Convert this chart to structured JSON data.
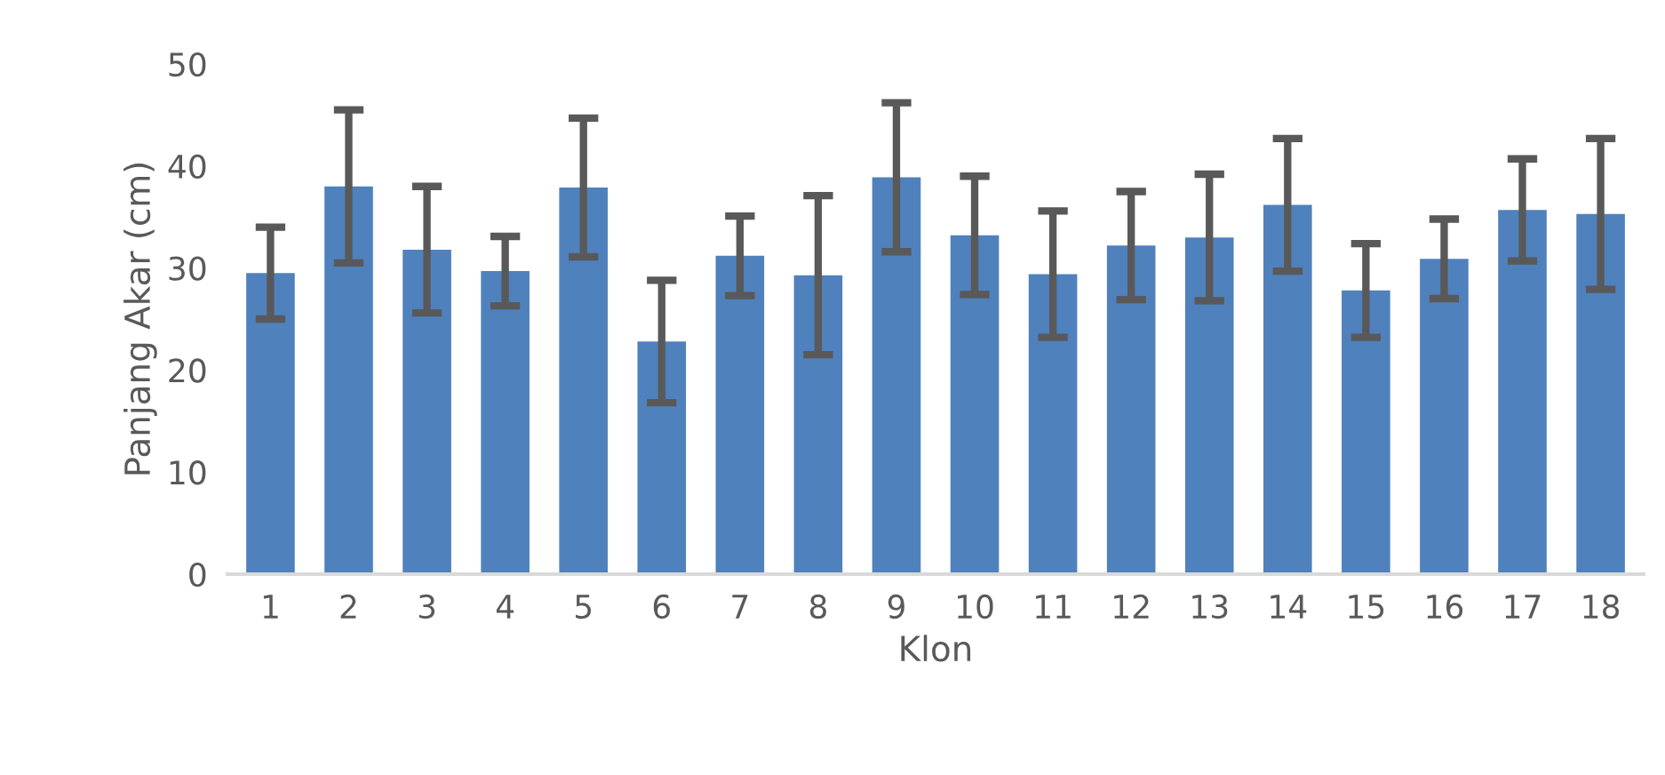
{
  "chart_data": {
    "type": "bar",
    "xlabel": "Klon",
    "ylabel": "Panjang Akar (cm)",
    "categories": [
      "1",
      "2",
      "3",
      "4",
      "5",
      "6",
      "7",
      "8",
      "9",
      "10",
      "11",
      "12",
      "13",
      "14",
      "15",
      "16",
      "17",
      "18"
    ],
    "values": [
      29.5,
      38,
      31.8,
      29.7,
      37.9,
      22.8,
      31.2,
      29.3,
      38.9,
      33.2,
      29.4,
      32.2,
      33,
      36.2,
      27.8,
      30.9,
      35.7,
      35.3
    ],
    "errors": [
      4.5,
      7.5,
      6.2,
      3.4,
      6.8,
      6,
      3.9,
      7.8,
      7.3,
      5.8,
      6.2,
      5.3,
      6.2,
      6.5,
      4.6,
      3.9,
      5,
      7.4
    ],
    "color": "#4f81bd",
    "ylim": [
      0,
      50
    ],
    "yticks": [
      0,
      10,
      20,
      30,
      40,
      50
    ],
    "grid": false,
    "legend": false
  }
}
